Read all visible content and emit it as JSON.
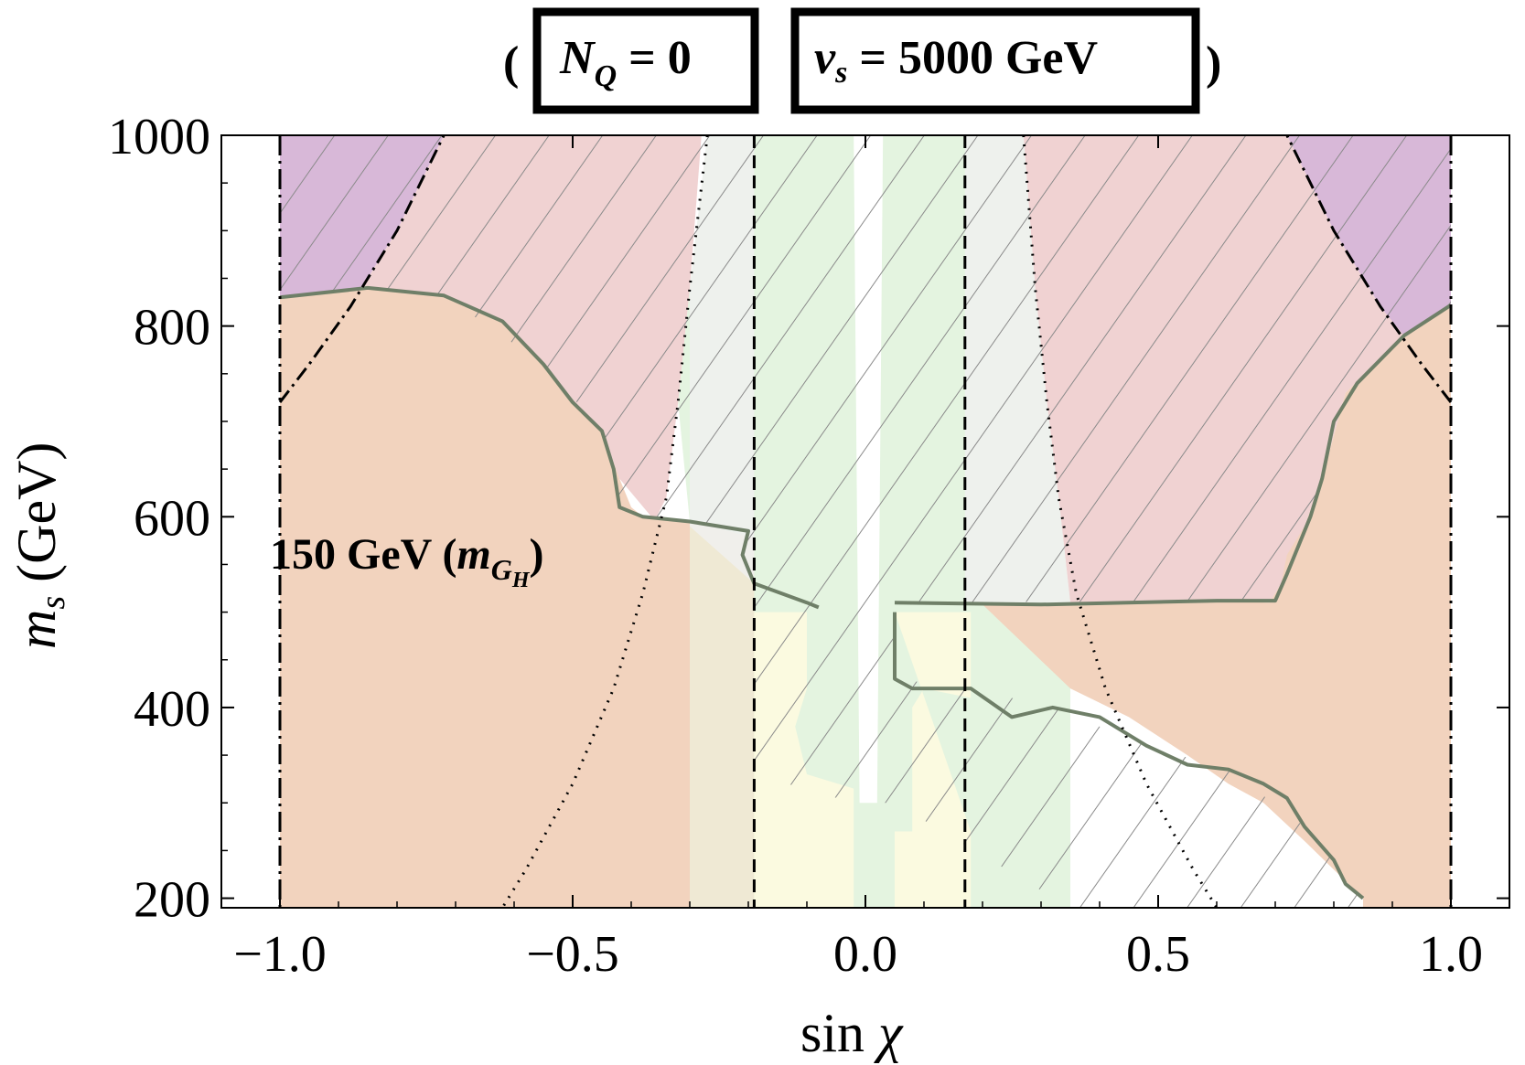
{
  "chart_data": {
    "type": "region",
    "header": {
      "box1": {
        "symbol": "N",
        "subscript": "Q",
        "rest": " = 0"
      },
      "box2": {
        "symbol": "v",
        "subscript": "s",
        "rest": " = 5000 GeV"
      },
      "open_paren": "(",
      "close_paren": ")"
    },
    "xlabel": {
      "main": "sin ",
      "symbol": "χ"
    },
    "ylabel": {
      "symbol": "m",
      "subscript": "s",
      "rest": " (GeV)"
    },
    "xlim": [
      -1.1,
      1.1
    ],
    "ylim": [
      190,
      1000
    ],
    "xticks": [
      -1.0,
      -0.5,
      0.0,
      0.5,
      1.0
    ],
    "xtick_labels": [
      "−1.0",
      "−0.5",
      "0.0",
      "0.5",
      "1.0"
    ],
    "yticks": [
      200,
      400,
      600,
      800,
      1000
    ],
    "ytick_labels": [
      "200",
      "400",
      "600",
      "800",
      "1000"
    ],
    "annotation": {
      "main": "150 GeV (",
      "symbol": "m",
      "subscript": "G",
      "subsub": "H",
      "close": ")"
    },
    "colors": {
      "orange_region": "#f2d3be",
      "pink_region": "#f0d2d2",
      "purple_region": "#d8b8d8",
      "green_region": "#e4f4e0",
      "yellow_region": "#fbfae0",
      "tan_region": "#efe9d4",
      "grey_band": "#f0f0f0",
      "hatch": "#8a8a8a",
      "boundary": "#6f7f68"
    },
    "regions": {
      "orange_left": [
        [
          -1.0,
          190
        ],
        [
          -1.0,
          830
        ],
        [
          -0.85,
          840
        ],
        [
          -0.72,
          832
        ],
        [
          -0.62,
          805
        ],
        [
          -0.55,
          760
        ],
        [
          -0.5,
          720
        ],
        [
          -0.45,
          690
        ],
        [
          -0.42,
          640
        ],
        [
          -0.4,
          610
        ],
        [
          -0.38,
          600
        ],
        [
          -0.3,
          595
        ],
        [
          -0.3,
          190
        ]
      ],
      "orange_right": [
        [
          1.0,
          190
        ],
        [
          1.0,
          822
        ],
        [
          0.92,
          790
        ],
        [
          0.82,
          730
        ],
        [
          0.78,
          640
        ],
        [
          0.75,
          590
        ],
        [
          0.72,
          560
        ],
        [
          0.71,
          530
        ],
        [
          0.69,
          510
        ],
        [
          0.6,
          512
        ],
        [
          0.2,
          508
        ],
        [
          0.35,
          420
        ],
        [
          0.45,
          390
        ],
        [
          0.55,
          350
        ],
        [
          0.62,
          320
        ],
        [
          0.68,
          300
        ],
        [
          0.75,
          260
        ],
        [
          0.8,
          230
        ],
        [
          0.85,
          200
        ],
        [
          0.85,
          190
        ]
      ],
      "purple_left": [
        [
          -1.0,
          720
        ],
        [
          -1.0,
          1000
        ],
        [
          -0.72,
          1000
        ],
        [
          -0.8,
          900
        ],
        [
          -0.88,
          820
        ],
        [
          -0.95,
          760
        ]
      ],
      "purple_right": [
        [
          1.0,
          720
        ],
        [
          1.0,
          1000
        ],
        [
          0.72,
          1000
        ],
        [
          0.8,
          900
        ],
        [
          0.88,
          820
        ],
        [
          0.95,
          760
        ]
      ],
      "pink_left": [
        [
          -0.72,
          1000
        ],
        [
          -0.28,
          1000
        ],
        [
          -0.3,
          840
        ],
        [
          -0.32,
          720
        ],
        [
          -0.34,
          620
        ],
        [
          -0.36,
          596
        ],
        [
          -0.42,
          640
        ],
        [
          -0.45,
          690
        ],
        [
          -0.5,
          720
        ],
        [
          -0.55,
          760
        ],
        [
          -0.62,
          805
        ],
        [
          -0.72,
          832
        ],
        [
          -0.85,
          840
        ],
        [
          -0.88,
          820
        ],
        [
          -0.8,
          900
        ]
      ],
      "pink_right": [
        [
          0.72,
          1000
        ],
        [
          0.27,
          1000
        ],
        [
          0.29,
          840
        ],
        [
          0.31,
          720
        ],
        [
          0.33,
          620
        ],
        [
          0.35,
          510
        ],
        [
          0.6,
          512
        ],
        [
          0.69,
          510
        ],
        [
          0.71,
          530
        ],
        [
          0.75,
          590
        ],
        [
          0.78,
          640
        ],
        [
          0.82,
          730
        ],
        [
          0.92,
          790
        ],
        [
          0.88,
          820
        ],
        [
          0.8,
          900
        ]
      ],
      "green_center": [
        [
          -0.27,
          1000
        ],
        [
          0.27,
          1000
        ],
        [
          0.29,
          840
        ],
        [
          0.31,
          720
        ],
        [
          0.33,
          620
        ],
        [
          0.35,
          510
        ],
        [
          0.35,
          190
        ],
        [
          -0.3,
          190
        ],
        [
          -0.3,
          595
        ],
        [
          -0.32,
          720
        ],
        [
          -0.3,
          840
        ]
      ],
      "yellow_left": [
        [
          -0.19,
          500
        ],
        [
          -0.1,
          500
        ],
        [
          -0.1,
          420
        ],
        [
          -0.12,
          380
        ],
        [
          -0.1,
          330
        ],
        [
          -0.02,
          315
        ],
        [
          -0.02,
          190
        ],
        [
          -0.19,
          190
        ]
      ],
      "yellow_right": [
        [
          0.05,
          500
        ],
        [
          0.18,
          500
        ],
        [
          0.18,
          410
        ],
        [
          0.1,
          420
        ],
        [
          0.08,
          400
        ],
        [
          0.08,
          270
        ],
        [
          0.05,
          270
        ],
        [
          0.05,
          190
        ],
        [
          0.18,
          190
        ],
        [
          0.18,
          270
        ]
      ],
      "white_band": [
        [
          -0.02,
          1000
        ],
        [
          0.03,
          1000
        ],
        [
          0.02,
          300
        ],
        [
          -0.01,
          300
        ]
      ],
      "tan_left": [
        [
          -0.62,
          190
        ],
        [
          -0.5,
          300
        ],
        [
          -0.38,
          440
        ],
        [
          -0.3,
          595
        ],
        [
          -0.19,
          578
        ],
        [
          -0.19,
          190
        ]
      ]
    },
    "curves": {
      "dashdot_left": [
        [
          -1.0,
          720
        ],
        [
          -0.95,
          760
        ],
        [
          -0.88,
          820
        ],
        [
          -0.8,
          900
        ],
        [
          -0.72,
          1000
        ]
      ],
      "dashdot_right": [
        [
          1.0,
          720
        ],
        [
          0.95,
          760
        ],
        [
          0.88,
          820
        ],
        [
          0.8,
          900
        ],
        [
          0.72,
          1000
        ]
      ],
      "dotted_left": [
        [
          -0.27,
          1000
        ],
        [
          -0.3,
          840
        ],
        [
          -0.32,
          720
        ],
        [
          -0.34,
          620
        ],
        [
          -0.38,
          520
        ],
        [
          -0.43,
          420
        ],
        [
          -0.5,
          320
        ],
        [
          -0.58,
          230
        ],
        [
          -0.62,
          190
        ]
      ],
      "dotted_right": [
        [
          0.27,
          1000
        ],
        [
          0.29,
          840
        ],
        [
          0.31,
          720
        ],
        [
          0.33,
          620
        ],
        [
          0.36,
          520
        ],
        [
          0.41,
          420
        ],
        [
          0.48,
          320
        ],
        [
          0.56,
          230
        ],
        [
          0.6,
          190
        ]
      ],
      "boundary_left": [
        [
          -1.0,
          830
        ],
        [
          -0.85,
          840
        ],
        [
          -0.72,
          832
        ],
        [
          -0.62,
          805
        ],
        [
          -0.55,
          760
        ],
        [
          -0.5,
          720
        ],
        [
          -0.45,
          690
        ],
        [
          -0.43,
          650
        ],
        [
          -0.42,
          610
        ],
        [
          -0.38,
          600
        ],
        [
          -0.3,
          595
        ],
        [
          -0.2,
          585
        ],
        [
          -0.21,
          560
        ],
        [
          -0.19,
          530
        ],
        [
          -0.1,
          510
        ],
        [
          -0.08,
          505
        ]
      ],
      "boundary_right": [
        [
          1.0,
          822
        ],
        [
          0.92,
          790
        ],
        [
          0.84,
          740
        ],
        [
          0.8,
          700
        ],
        [
          0.78,
          640
        ],
        [
          0.76,
          600
        ],
        [
          0.74,
          570
        ],
        [
          0.72,
          540
        ],
        [
          0.7,
          512
        ],
        [
          0.6,
          512
        ],
        [
          0.3,
          508
        ],
        [
          0.05,
          510
        ]
      ],
      "boundary_lower_right": [
        [
          0.05,
          500
        ],
        [
          0.05,
          430
        ],
        [
          0.08,
          420
        ],
        [
          0.18,
          420
        ],
        [
          0.25,
          390
        ],
        [
          0.32,
          400
        ],
        [
          0.4,
          390
        ],
        [
          0.48,
          360
        ],
        [
          0.55,
          340
        ],
        [
          0.62,
          335
        ],
        [
          0.68,
          320
        ],
        [
          0.72,
          305
        ],
        [
          0.75,
          275
        ],
        [
          0.8,
          240
        ],
        [
          0.82,
          215
        ],
        [
          0.85,
          200
        ]
      ]
    },
    "vlines": {
      "dashed": [
        -0.19,
        0.17
      ],
      "dashdot": [
        -1.0,
        1.0
      ]
    }
  }
}
